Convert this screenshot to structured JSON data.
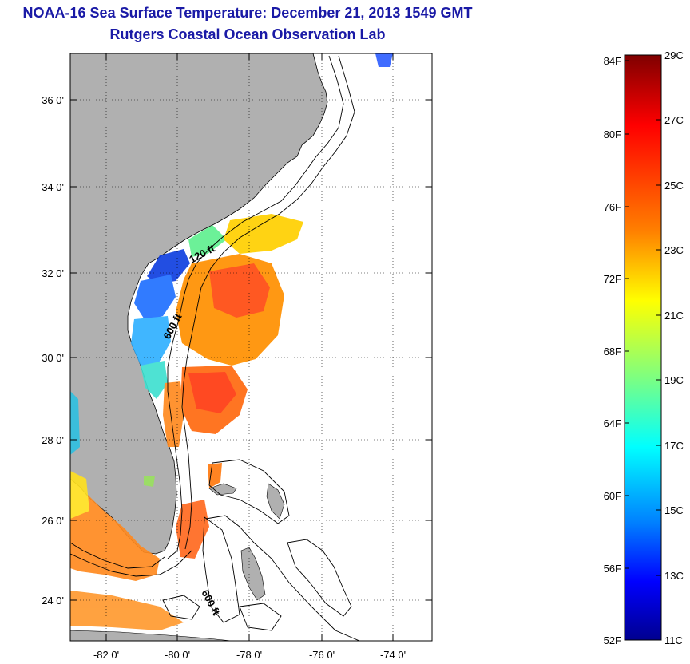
{
  "title": {
    "line1": "NOAA-16 Sea Surface Temperature:  December 21, 2013 1549 GMT",
    "line2": "Rutgers Coastal Ocean Observation Lab"
  },
  "map": {
    "lat_labels": [
      "36 0'",
      "34 0'",
      "32 0'",
      "30 0'",
      "28 0'",
      "26 0'",
      "24 0'"
    ],
    "lon_labels": [
      "-82 0'",
      "-80 0'",
      "-78 0'",
      "-76 0'",
      "-74 0'"
    ],
    "isobath_labels": [
      "120 ft",
      "600 ft",
      "600 ft"
    ],
    "colors": {
      "land": "#b0b0b0",
      "ocean": "#ffffff",
      "contour": "#000000"
    }
  },
  "colorbar": {
    "fahrenheit": [
      "84F",
      "80F",
      "76F",
      "72F",
      "68F",
      "64F",
      "60F",
      "56F",
      "52F"
    ],
    "celsius": [
      "29C",
      "27C",
      "25C",
      "23C",
      "21C",
      "19C",
      "17C",
      "15C",
      "13C",
      "11C"
    ],
    "range_c": [
      11,
      29
    ],
    "palette": [
      "#7f0000",
      "#ff0000",
      "#ff7f00",
      "#ffff00",
      "#7fff7f",
      "#00ffff",
      "#007fff",
      "#0000ff",
      "#00008f"
    ]
  }
}
